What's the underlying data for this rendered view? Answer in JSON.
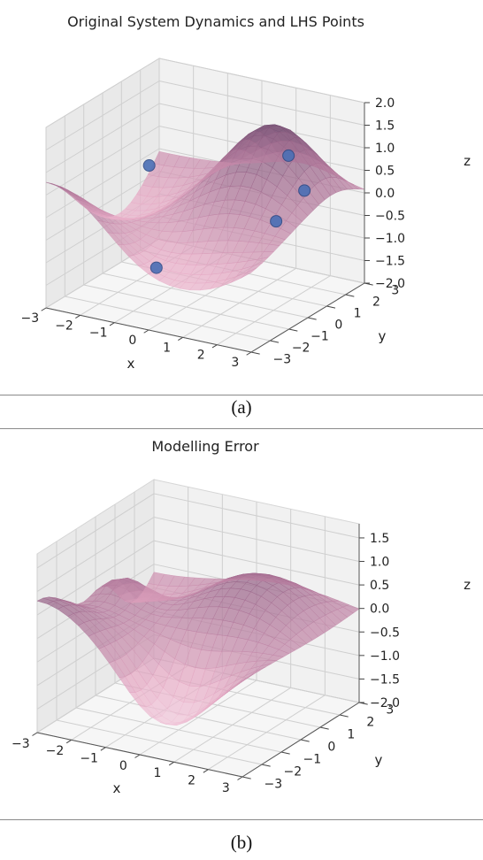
{
  "chart_data": [
    {
      "type": "surface3d",
      "title": "Original System Dynamics and LHS Points",
      "xlabel": "x",
      "ylabel": "y",
      "zlabel": "z",
      "xticks": [
        "−3",
        "−2",
        "−1",
        "0",
        "1",
        "2",
        "3"
      ],
      "yticks": [
        "−3",
        "−2",
        "−1",
        "0",
        "1",
        "2",
        "3"
      ],
      "zticks": [
        "2.0",
        "1.5",
        "1.0",
        "0.5",
        "0.0",
        "−0.5",
        "−1.0",
        "−1.5",
        "−2.0"
      ],
      "xlim": [
        -3,
        3
      ],
      "ylim": [
        -3,
        3
      ],
      "zlim": [
        -2,
        2
      ],
      "grid": true,
      "colormap": [
        "#fbe3ee",
        "#e6a9c4",
        "#a86f93",
        "#5b3e62"
      ],
      "points": [
        {
          "x": -2.3,
          "y": 1.2,
          "z": 0.2
        },
        {
          "x": 1.0,
          "y": 2.6,
          "z": 0.6
        },
        {
          "x": 1.3,
          "y": 1.4,
          "z": -0.5
        },
        {
          "x": 2.9,
          "y": 0.0,
          "z": 0.8
        },
        {
          "x": -0.6,
          "y": -1.5,
          "z": -1.1
        }
      ],
      "point_color": "#4a6fb5"
    },
    {
      "type": "surface3d",
      "title": "Modelling Error",
      "xlabel": "x",
      "ylabel": "y",
      "zlabel": "z",
      "xticks": [
        "−3",
        "−2",
        "−1",
        "0",
        "1",
        "2",
        "3"
      ],
      "yticks": [
        "−3",
        "−2",
        "−1",
        "0",
        "1",
        "2",
        "3"
      ],
      "zticks": [
        "1.5",
        "1.0",
        "0.5",
        "0.0",
        "−0.5",
        "−1.0",
        "−1.5",
        "−2.0"
      ],
      "xlim": [
        -3,
        3
      ],
      "ylim": [
        -3,
        3
      ],
      "zlim": [
        -2,
        1.8
      ],
      "grid": true,
      "colormap": [
        "#fbe3ee",
        "#e6a9c4",
        "#a86f93",
        "#5b3e62"
      ]
    }
  ],
  "captions": [
    "(a)",
    "(b)"
  ]
}
